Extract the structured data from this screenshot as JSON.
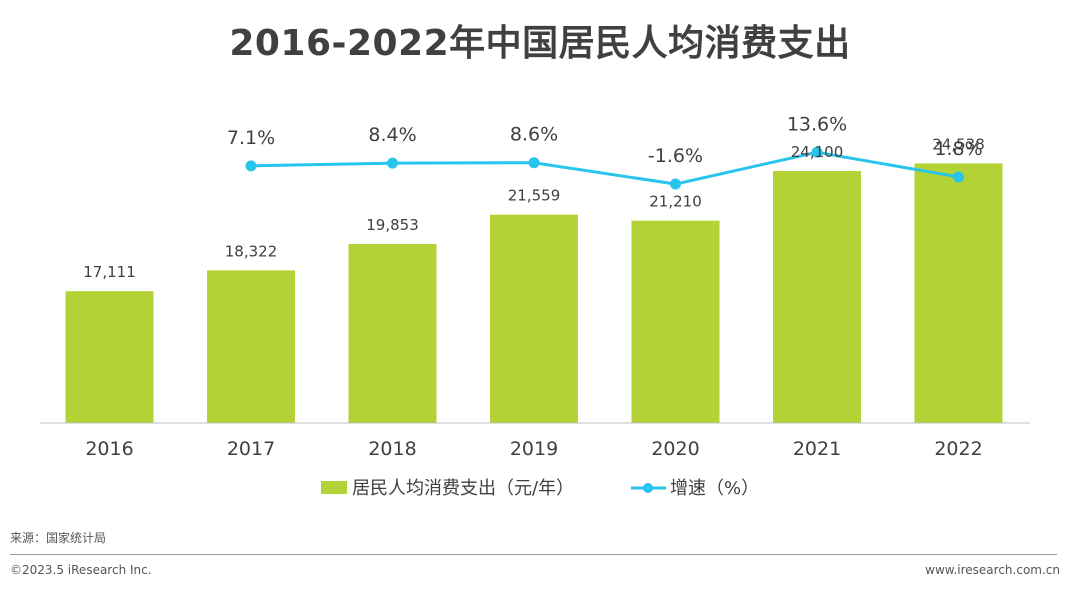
{
  "title": "2016-2022年中国居民人均消费支出",
  "chart_data": {
    "type": "bar",
    "categories": [
      "2016",
      "2017",
      "2018",
      "2019",
      "2020",
      "2021",
      "2022"
    ],
    "series": [
      {
        "name": "居民人均消费支出（元/年）",
        "type": "bar",
        "values": [
          17111,
          18322,
          19853,
          21559,
          21210,
          24100,
          24538
        ],
        "labels": [
          "17,111",
          "18,322",
          "19,853",
          "21,559",
          "21,210",
          "24,100",
          "24,538"
        ],
        "color": "#b2d235"
      },
      {
        "name": "增速（%）",
        "type": "line",
        "values": [
          null,
          7.1,
          8.4,
          8.6,
          -1.6,
          13.6,
          1.8
        ],
        "labels": [
          "",
          "7.1%",
          "8.4%",
          "8.6%",
          "-1.6%",
          "13.6%",
          "1.8%"
        ],
        "color": "#29c4ec"
      }
    ],
    "legend": "bottom-center"
  },
  "footer": {
    "source": "来源：国家统计局",
    "copyright": "©2023.5 iResearch Inc.",
    "website": "www.iresearch.com.cn"
  }
}
